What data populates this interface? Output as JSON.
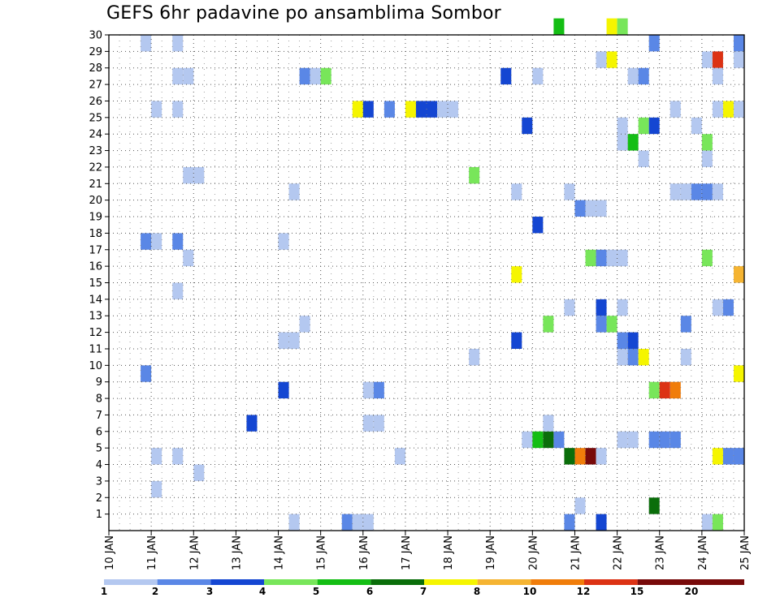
{
  "chart_data": {
    "type": "heatmap",
    "title": "GEFS 6hr padavine po ansamblima Sombor",
    "xlabel": "",
    "ylabel": "",
    "x_tick_labels": [
      "10 JAN",
      "11 JAN",
      "12 JAN",
      "13 JAN",
      "14 JAN",
      "15 JAN",
      "16 JAN",
      "17 JAN",
      "18 JAN",
      "19 JAN",
      "20 JAN",
      "21 JAN",
      "22 JAN",
      "23 JAN",
      "24 JAN",
      "25 JAN"
    ],
    "y_tick_labels": [
      "1",
      "2",
      "3",
      "4",
      "5",
      "6",
      "7",
      "8",
      "9",
      "10",
      "11",
      "12",
      "13",
      "14",
      "15",
      "16",
      "17",
      "18",
      "19",
      "20",
      "21",
      "22",
      "23",
      "24",
      "25",
      "26",
      "27",
      "28",
      "29",
      "30"
    ],
    "xlim_days": [
      0,
      15
    ],
    "ylim_members": [
      0,
      30
    ],
    "grid": true,
    "legend": {
      "placement": "bottom",
      "colors": [
        "#b4c8f0",
        "#5a87e6",
        "#1446d2",
        "#78e65a",
        "#14be14",
        "#0a6e0a",
        "#f5f500",
        "#f5b432",
        "#f07d0a",
        "#dc3214",
        "#780a0a"
      ],
      "labels": [
        "1",
        "2",
        "3",
        "4",
        "5",
        "6",
        "7",
        "8",
        "10",
        "12",
        "15",
        "20"
      ]
    },
    "points": [
      {
        "day": 10.75,
        "member": 29,
        "level": 0
      },
      {
        "day": 11.5,
        "member": 29,
        "level": 0
      },
      {
        "day": 11.5,
        "member": 27,
        "level": 0
      },
      {
        "day": 11.75,
        "member": 27,
        "level": 0
      },
      {
        "day": 11.0,
        "member": 25,
        "level": 0
      },
      {
        "day": 11.5,
        "member": 25,
        "level": 0
      },
      {
        "day": 11.75,
        "member": 21,
        "level": 0
      },
      {
        "day": 12.0,
        "member": 21,
        "level": 0
      },
      {
        "day": 10.75,
        "member": 17,
        "level": 1
      },
      {
        "day": 11.0,
        "member": 17,
        "level": 0
      },
      {
        "day": 11.5,
        "member": 17,
        "level": 1
      },
      {
        "day": 11.75,
        "member": 16,
        "level": 0
      },
      {
        "day": 11.5,
        "member": 14,
        "level": 0
      },
      {
        "day": 10.75,
        "member": 9,
        "level": 1
      },
      {
        "day": 11.0,
        "member": 4,
        "level": 0
      },
      {
        "day": 11.5,
        "member": 4,
        "level": 0
      },
      {
        "day": 12.0,
        "member": 3,
        "level": 0
      },
      {
        "day": 11.0,
        "member": 2,
        "level": 0
      },
      {
        "day": 13.25,
        "member": 6,
        "level": 2
      },
      {
        "day": 14.0,
        "member": 17,
        "level": 0
      },
      {
        "day": 14.0,
        "member": 11,
        "level": 0
      },
      {
        "day": 14.25,
        "member": 11,
        "level": 0
      },
      {
        "day": 14.0,
        "member": 8,
        "level": 2
      },
      {
        "day": 14.25,
        "member": 20,
        "level": 0
      },
      {
        "day": 14.5,
        "member": 12,
        "level": 0
      },
      {
        "day": 14.25,
        "member": 0,
        "level": 0
      },
      {
        "day": 14.5,
        "member": 27,
        "level": 1
      },
      {
        "day": 14.75,
        "member": 27,
        "level": 0
      },
      {
        "day": 15.0,
        "member": 27,
        "level": 3
      },
      {
        "day": 15.75,
        "member": 25,
        "level": 6
      },
      {
        "day": 16.0,
        "member": 25,
        "level": 2
      },
      {
        "day": 16.5,
        "member": 25,
        "level": 1
      },
      {
        "day": 17.0,
        "member": 25,
        "level": 6
      },
      {
        "day": 17.25,
        "member": 25,
        "level": 2
      },
      {
        "day": 17.5,
        "member": 25,
        "level": 2
      },
      {
        "day": 17.75,
        "member": 25,
        "level": 0
      },
      {
        "day": 18.0,
        "member": 25,
        "level": 0
      },
      {
        "day": 16.0,
        "member": 8,
        "level": 0
      },
      {
        "day": 16.25,
        "member": 8,
        "level": 1
      },
      {
        "day": 16.0,
        "member": 6,
        "level": 0
      },
      {
        "day": 16.25,
        "member": 6,
        "level": 0
      },
      {
        "day": 16.75,
        "member": 4,
        "level": 0
      },
      {
        "day": 15.5,
        "member": 0,
        "level": 1
      },
      {
        "day": 15.75,
        "member": 0,
        "level": 0
      },
      {
        "day": 16.0,
        "member": 0,
        "level": 0
      },
      {
        "day": 18.5,
        "member": 21,
        "level": 3
      },
      {
        "day": 18.5,
        "member": 10,
        "level": 0
      },
      {
        "day": 19.25,
        "member": 27,
        "level": 2
      },
      {
        "day": 19.75,
        "member": 24,
        "level": 2
      },
      {
        "day": 19.5,
        "member": 20,
        "level": 0
      },
      {
        "day": 20.0,
        "member": 18,
        "level": 2
      },
      {
        "day": 19.5,
        "member": 15,
        "level": 6
      },
      {
        "day": 19.5,
        "member": 11,
        "level": 2
      },
      {
        "day": 19.75,
        "member": 5,
        "level": 0
      },
      {
        "day": 20.0,
        "member": 5,
        "level": 4
      },
      {
        "day": 20.25,
        "member": 5,
        "level": 5
      },
      {
        "day": 20.5,
        "member": 5,
        "level": 1
      },
      {
        "day": 20.25,
        "member": 6,
        "level": 0
      },
      {
        "day": 20.25,
        "member": 12,
        "level": 3
      },
      {
        "day": 20.0,
        "member": 27,
        "level": 0
      },
      {
        "day": 20.5,
        "member": 30,
        "level": 4
      },
      {
        "day": 20.75,
        "member": 20,
        "level": 0
      },
      {
        "day": 21.0,
        "member": 19,
        "level": 1
      },
      {
        "day": 21.25,
        "member": 19,
        "level": 0
      },
      {
        "day": 21.5,
        "member": 19,
        "level": 0
      },
      {
        "day": 21.25,
        "member": 16,
        "level": 3
      },
      {
        "day": 21.5,
        "member": 16,
        "level": 1
      },
      {
        "day": 21.75,
        "member": 16,
        "level": 0
      },
      {
        "day": 22.0,
        "member": 16,
        "level": 0
      },
      {
        "day": 20.75,
        "member": 13,
        "level": 0
      },
      {
        "day": 21.5,
        "member": 13,
        "level": 2
      },
      {
        "day": 21.5,
        "member": 12,
        "level": 1
      },
      {
        "day": 21.75,
        "member": 12,
        "level": 3
      },
      {
        "day": 20.75,
        "member": 4,
        "level": 5
      },
      {
        "day": 21.0,
        "member": 4,
        "level": 8
      },
      {
        "day": 21.25,
        "member": 4,
        "level": 10
      },
      {
        "day": 21.5,
        "member": 4,
        "level": 0
      },
      {
        "day": 21.0,
        "member": 1,
        "level": 0
      },
      {
        "day": 20.75,
        "member": 0,
        "level": 1
      },
      {
        "day": 21.5,
        "member": 0,
        "level": 2
      },
      {
        "day": 21.5,
        "member": 28,
        "level": 0
      },
      {
        "day": 21.75,
        "member": 28,
        "level": 6
      },
      {
        "day": 21.75,
        "member": 30,
        "level": 6
      },
      {
        "day": 22.0,
        "member": 30,
        "level": 3
      },
      {
        "day": 22.25,
        "member": 27,
        "level": 0
      },
      {
        "day": 22.5,
        "member": 27,
        "level": 1
      },
      {
        "day": 22.0,
        "member": 24,
        "level": 0
      },
      {
        "day": 22.0,
        "member": 23,
        "level": 0
      },
      {
        "day": 22.25,
        "member": 23,
        "level": 4
      },
      {
        "day": 22.5,
        "member": 24,
        "level": 3
      },
      {
        "day": 22.75,
        "member": 24,
        "level": 2
      },
      {
        "day": 22.5,
        "member": 22,
        "level": 0
      },
      {
        "day": 22.0,
        "member": 13,
        "level": 0
      },
      {
        "day": 22.0,
        "member": 11,
        "level": 1
      },
      {
        "day": 22.25,
        "member": 11,
        "level": 2
      },
      {
        "day": 22.0,
        "member": 10,
        "level": 0
      },
      {
        "day": 22.25,
        "member": 10,
        "level": 1
      },
      {
        "day": 22.5,
        "member": 10,
        "level": 6
      },
      {
        "day": 22.0,
        "member": 5,
        "level": 0
      },
      {
        "day": 22.25,
        "member": 5,
        "level": 0
      },
      {
        "day": 22.75,
        "member": 29,
        "level": 1
      },
      {
        "day": 22.75,
        "member": 5,
        "level": 1
      },
      {
        "day": 23.0,
        "member": 5,
        "level": 1
      },
      {
        "day": 23.25,
        "member": 5,
        "level": 1
      },
      {
        "day": 22.75,
        "member": 8,
        "level": 3
      },
      {
        "day": 23.0,
        "member": 8,
        "level": 9
      },
      {
        "day": 23.25,
        "member": 8,
        "level": 8
      },
      {
        "day": 22.75,
        "member": 1,
        "level": 5
      },
      {
        "day": 23.25,
        "member": 25,
        "level": 0
      },
      {
        "day": 23.75,
        "member": 24,
        "level": 0
      },
      {
        "day": 23.25,
        "member": 20,
        "level": 0
      },
      {
        "day": 23.5,
        "member": 20,
        "level": 0
      },
      {
        "day": 23.75,
        "member": 20,
        "level": 1
      },
      {
        "day": 24.0,
        "member": 20,
        "level": 1
      },
      {
        "day": 24.25,
        "member": 20,
        "level": 0
      },
      {
        "day": 23.5,
        "member": 12,
        "level": 1
      },
      {
        "day": 23.5,
        "member": 10,
        "level": 0
      },
      {
        "day": 24.0,
        "member": 28,
        "level": 0
      },
      {
        "day": 24.25,
        "member": 28,
        "level": 9
      },
      {
        "day": 24.25,
        "member": 27,
        "level": 0
      },
      {
        "day": 24.0,
        "member": 23,
        "level": 3
      },
      {
        "day": 24.0,
        "member": 22,
        "level": 0
      },
      {
        "day": 24.25,
        "member": 25,
        "level": 0
      },
      {
        "day": 24.5,
        "member": 25,
        "level": 6
      },
      {
        "day": 24.75,
        "member": 25,
        "level": 0
      },
      {
        "day": 24.75,
        "member": 29,
        "level": 1
      },
      {
        "day": 24.75,
        "member": 28,
        "level": 0
      },
      {
        "day": 24.0,
        "member": 16,
        "level": 3
      },
      {
        "day": 24.75,
        "member": 15,
        "level": 7
      },
      {
        "day": 24.25,
        "member": 13,
        "level": 0
      },
      {
        "day": 24.5,
        "member": 13,
        "level": 1
      },
      {
        "day": 24.75,
        "member": 9,
        "level": 6
      },
      {
        "day": 24.25,
        "member": 4,
        "level": 6
      },
      {
        "day": 24.5,
        "member": 4,
        "level": 1
      },
      {
        "day": 24.75,
        "member": 4,
        "level": 1
      },
      {
        "day": 24.0,
        "member": 0,
        "level": 0
      },
      {
        "day": 24.25,
        "member": 0,
        "level": 3
      }
    ]
  }
}
